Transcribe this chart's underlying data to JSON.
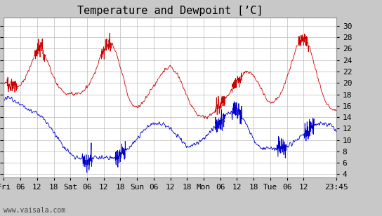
{
  "title": "Temperature and Dewpoint [’C]",
  "yticks": [
    4,
    6,
    8,
    10,
    12,
    14,
    16,
    18,
    20,
    22,
    24,
    26,
    28,
    30
  ],
  "ylim": [
    3.5,
    31.5
  ],
  "xlabel_ticks": [
    "Fri",
    "06",
    "12",
    "18",
    "Sat",
    "06",
    "12",
    "18",
    "Sun",
    "06",
    "12",
    "18",
    "Mon",
    "06",
    "12",
    "18",
    "Tue",
    "06",
    "12",
    "23:45"
  ],
  "xtick_positions": [
    0,
    6,
    12,
    18,
    24,
    30,
    36,
    42,
    48,
    54,
    60,
    66,
    72,
    78,
    84,
    90,
    96,
    102,
    108,
    119.75
  ],
  "watermark": "www.vaisala.com",
  "bg_color": "#c8c8c8",
  "plot_bg_color": "#ffffff",
  "temp_color": "#cc0000",
  "dew_color": "#0000cc",
  "grid_color": "#bbbbbb",
  "title_fontsize": 11,
  "tick_fontsize": 8,
  "watermark_fontsize": 7,
  "xlim_max": 119.75,
  "noise_seed": 12
}
